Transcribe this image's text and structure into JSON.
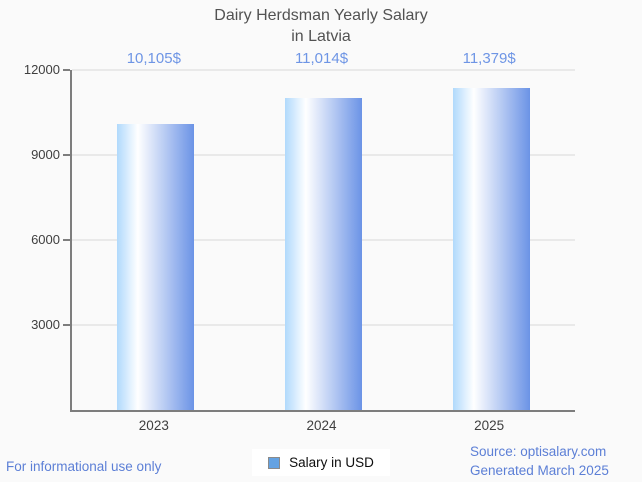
{
  "page": {
    "background": "#fafafa"
  },
  "header": {
    "title_line1": "Dairy Herdsman Yearly Salary",
    "title_line2": "in Latvia"
  },
  "chart_data": {
    "type": "bar",
    "title": "Dairy Herdsman Yearly Salary in Latvia",
    "categories": [
      "2023",
      "2024",
      "2025"
    ],
    "series": [
      {
        "name": "Salary in USD",
        "values": [
          10105,
          11014,
          11379
        ]
      }
    ],
    "value_labels": [
      "10,105$",
      "11,014$",
      "11,379$"
    ],
    "xlabel": "",
    "ylabel": "",
    "ylim": [
      0,
      12000
    ],
    "yticks": [
      3000,
      6000,
      9000,
      12000
    ],
    "grid": true,
    "legend_position": "bottom",
    "colors": {
      "bar_gradient_left": "#b0d9fc",
      "bar_gradient_mid": "#ffffff",
      "bar_gradient_right": "#6b93e6",
      "value_label_text": "#6e95e5",
      "axis_line": "#7d7d7d",
      "gridline": "#e9e9e9",
      "axis_text": "#3f3f3f",
      "title_text": "#525252",
      "legend_swatch": "#64a2e2",
      "legend_swatch_border": "#8a8a8a"
    }
  },
  "legend": {
    "label": "Salary in USD"
  },
  "footer": {
    "left_note": "For informational use only",
    "source": "Source: optisalary.com",
    "generated": "Generated March 2025",
    "link_color": "#5c7fd6"
  }
}
